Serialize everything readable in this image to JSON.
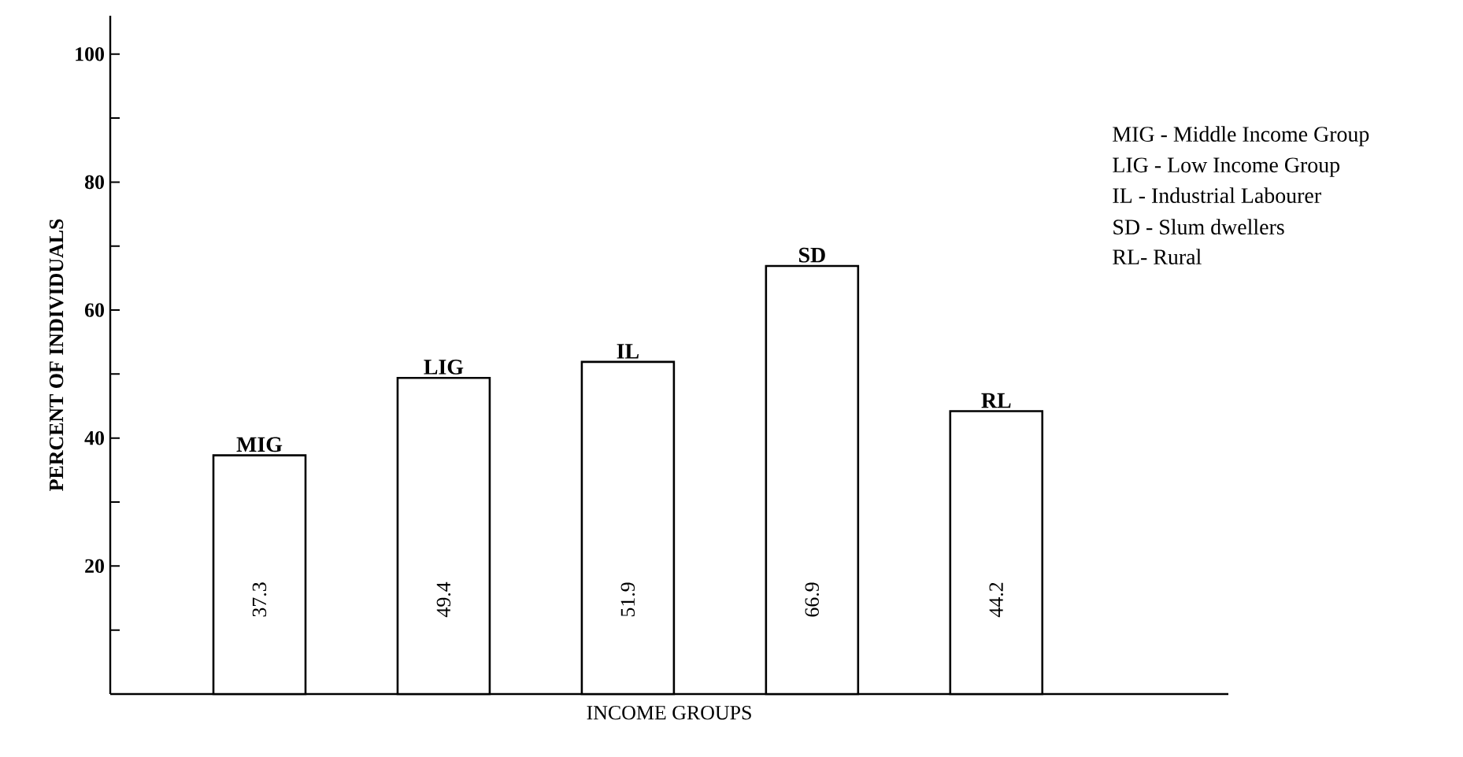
{
  "chart_data": {
    "type": "bar",
    "xlabel": "INCOME GROUPS",
    "ylabel": "PERCENT OF INDIVIDUALS",
    "categories": [
      "MIG",
      "LIG",
      "IL",
      "SD",
      "RL"
    ],
    "values": [
      37.3,
      49.4,
      51.9,
      66.9,
      44.2
    ],
    "color": "#ffffff",
    "ylim": [
      0,
      106
    ],
    "yticks": [
      {
        "value": 10,
        "label": null
      },
      20,
      {
        "value": 30,
        "label": null
      },
      40,
      {
        "value": 50,
        "label": null
      },
      60,
      {
        "value": 70,
        "label": null
      },
      80,
      {
        "value": 90,
        "label": null
      },
      100
    ],
    "tick_labels": "y",
    "data_labels": true,
    "grid": false,
    "annotations": [
      "MIG - Middle Income Group",
      "LIG - Low Income Group",
      "IL - Industrial Labourer",
      "SD - Slum dwellers",
      "RL- Rural"
    ]
  }
}
